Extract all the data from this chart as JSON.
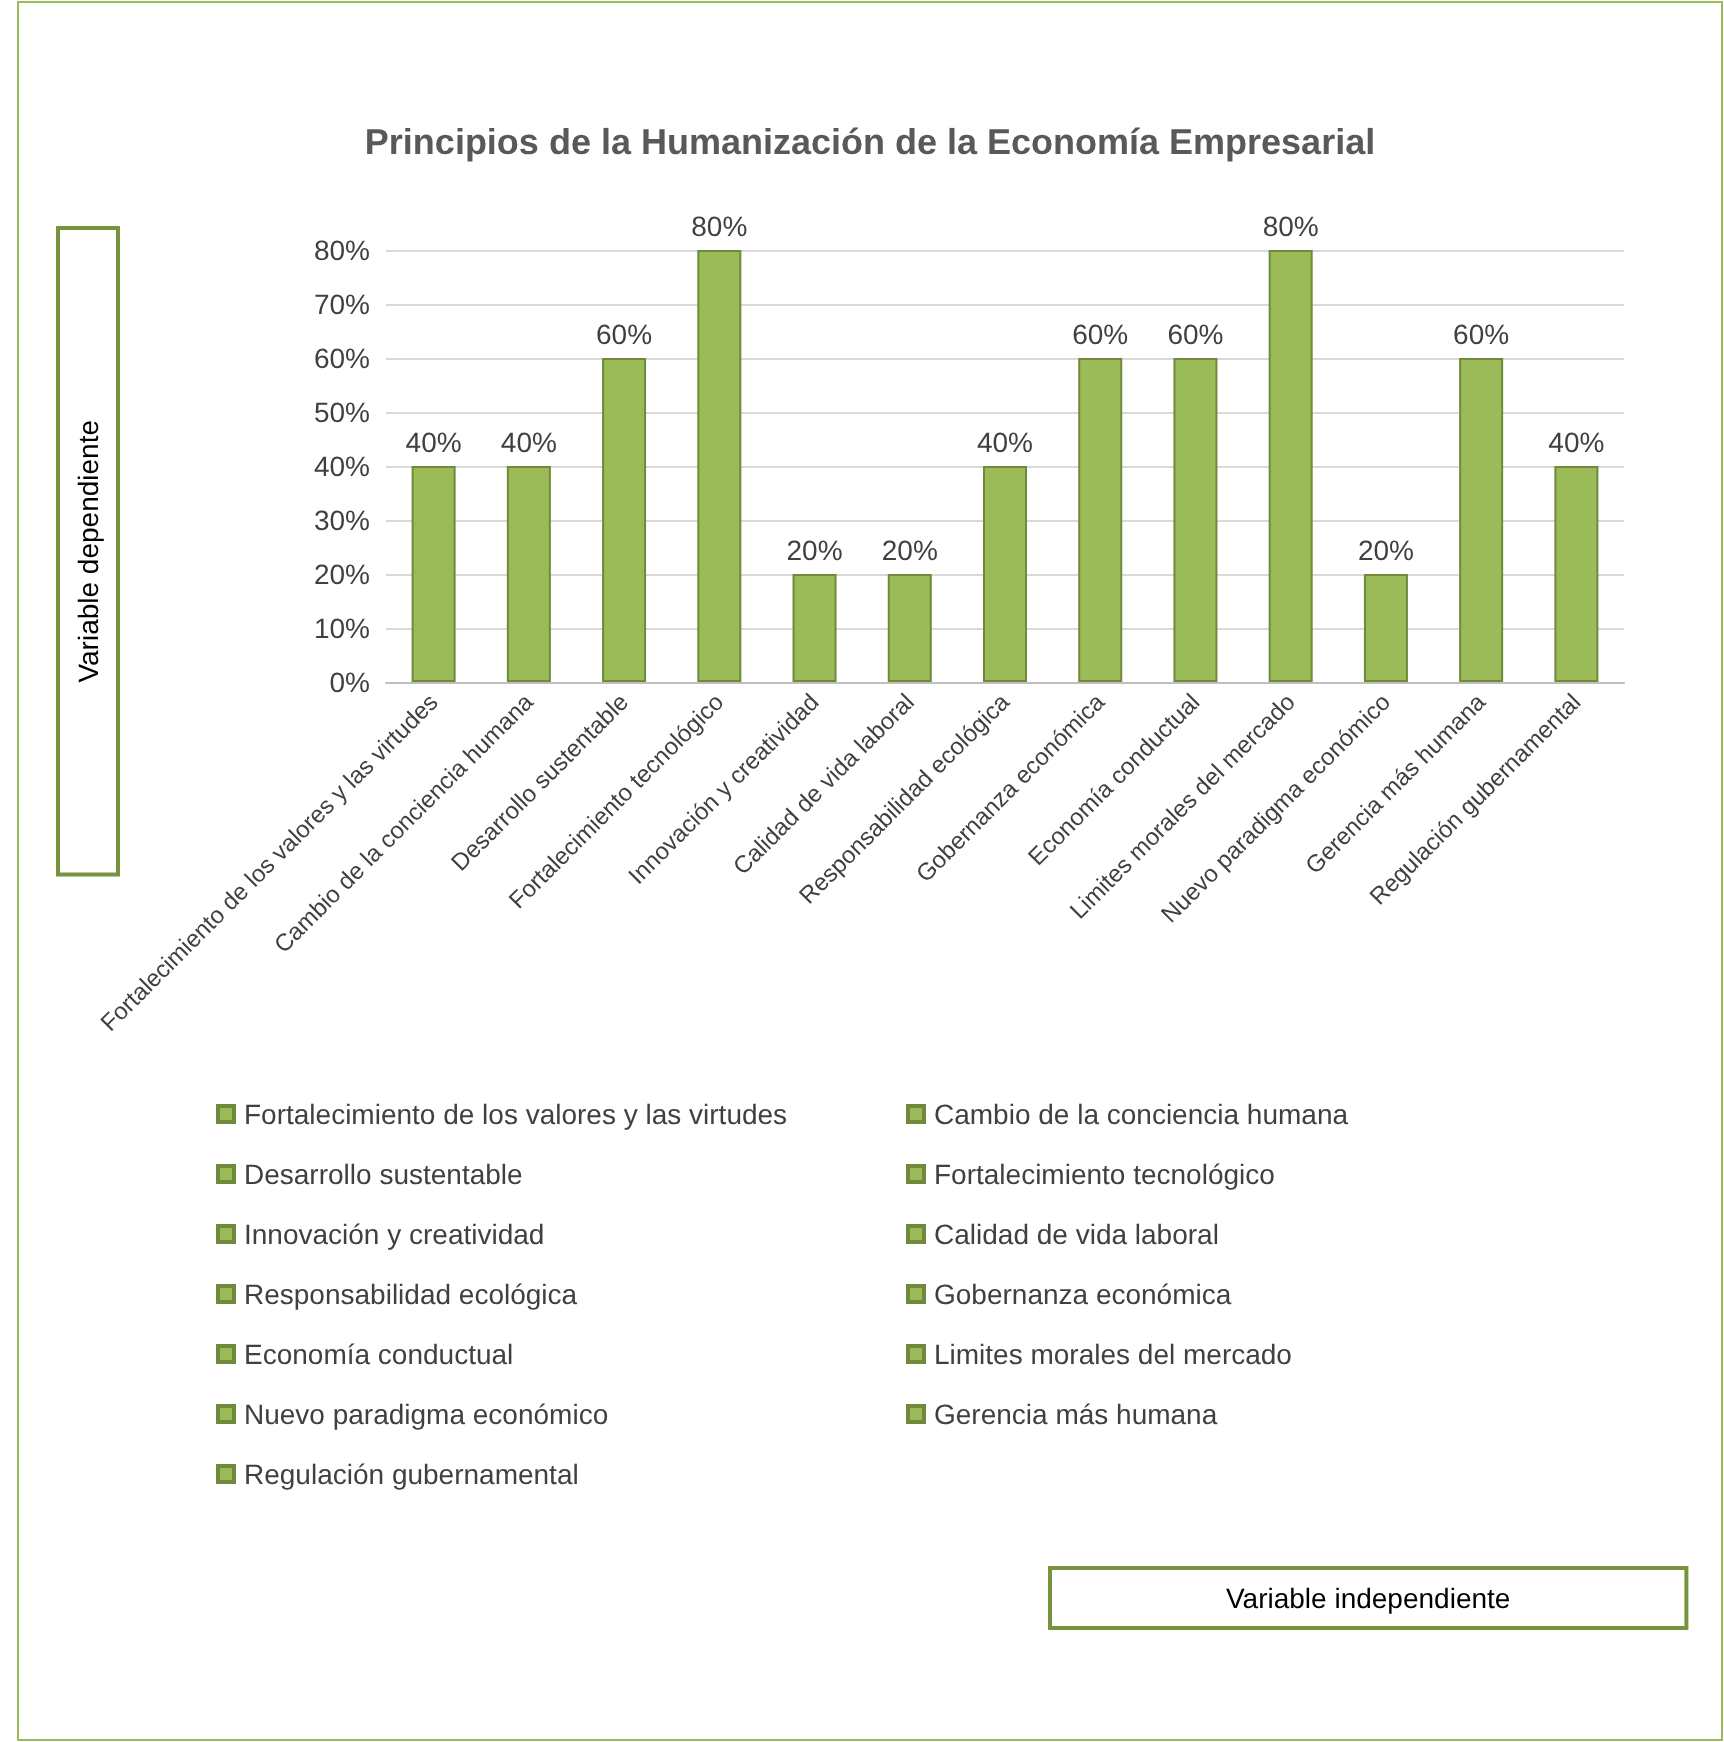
{
  "chart_data": {
    "type": "bar",
    "title": "Principios de la Humanización de la Economía Empresarial",
    "ylabel": "Variable dependiente",
    "annotations": [
      "Variable independiente"
    ],
    "categories": [
      "Fortalecimiento de los valores y las virtudes",
      "Cambio de la conciencia humana",
      "Desarrollo sustentable",
      "Fortalecimiento tecnológico",
      "Innovación y creatividad",
      "Calidad de vida laboral",
      "Responsabilidad ecológica",
      "Gobernanza económica",
      "Economía conductual",
      "Limites morales del mercado",
      "Nuevo paradigma económico",
      "Gerencia más humana",
      "Regulación gubernamental"
    ],
    "series": [
      {
        "name": "Fortalecimiento de los valores y las virtudes",
        "color": "#9bbb59",
        "values": [
          40,
          null,
          null,
          null,
          null,
          null,
          null,
          null,
          null,
          null,
          null,
          null,
          null
        ],
        "value_labels": [
          "40%",
          null,
          null,
          null,
          null,
          null,
          null,
          null,
          null,
          null,
          null,
          null,
          null
        ]
      },
      {
        "name": "Cambio de la conciencia humana",
        "color": "#9bbb59",
        "values": [
          null,
          40,
          null,
          null,
          null,
          null,
          null,
          null,
          null,
          null,
          null,
          null,
          null
        ],
        "value_labels": [
          null,
          "40%",
          null,
          null,
          null,
          null,
          null,
          null,
          null,
          null,
          null,
          null,
          null
        ]
      },
      {
        "name": "Desarrollo sustentable",
        "color": "#9bbb59",
        "values": [
          null,
          null,
          60,
          null,
          null,
          null,
          null,
          null,
          null,
          null,
          null,
          null,
          null
        ],
        "value_labels": [
          null,
          null,
          "60%",
          null,
          null,
          null,
          null,
          null,
          null,
          null,
          null,
          null,
          null
        ]
      },
      {
        "name": "Fortalecimiento tecnológico",
        "color": "#9bbb59",
        "values": [
          null,
          null,
          null,
          80,
          null,
          null,
          null,
          null,
          null,
          null,
          null,
          null,
          null
        ],
        "value_labels": [
          null,
          null,
          null,
          "80%",
          null,
          null,
          null,
          null,
          null,
          null,
          null,
          null,
          null
        ]
      },
      {
        "name": "Innovación y creatividad",
        "color": "#9bbb59",
        "values": [
          null,
          null,
          null,
          null,
          20,
          null,
          null,
          null,
          null,
          null,
          null,
          null,
          null
        ],
        "value_labels": [
          null,
          null,
          null,
          null,
          "20%",
          null,
          null,
          null,
          null,
          null,
          null,
          null,
          null
        ]
      },
      {
        "name": "Calidad de vida laboral",
        "color": "#9bbb59",
        "values": [
          null,
          null,
          null,
          null,
          null,
          20,
          null,
          null,
          null,
          null,
          null,
          null,
          null
        ],
        "value_labels": [
          null,
          null,
          null,
          null,
          null,
          "20%",
          null,
          null,
          null,
          null,
          null,
          null,
          null
        ]
      },
      {
        "name": "Responsabilidad ecológica",
        "color": "#9bbb59",
        "values": [
          null,
          null,
          null,
          null,
          null,
          null,
          40,
          null,
          null,
          null,
          null,
          null,
          null
        ],
        "value_labels": [
          null,
          null,
          null,
          null,
          null,
          null,
          "40%",
          null,
          null,
          null,
          null,
          null,
          null
        ]
      },
      {
        "name": "Gobernanza económica",
        "color": "#9bbb59",
        "values": [
          null,
          null,
          null,
          null,
          null,
          null,
          null,
          60,
          null,
          null,
          null,
          null,
          null
        ],
        "value_labels": [
          null,
          null,
          null,
          null,
          null,
          null,
          null,
          "60%",
          null,
          null,
          null,
          null,
          null
        ]
      },
      {
        "name": "Economía conductual",
        "color": "#9bbb59",
        "values": [
          null,
          null,
          null,
          null,
          null,
          null,
          null,
          null,
          60,
          null,
          null,
          null,
          null
        ],
        "value_labels": [
          null,
          null,
          null,
          null,
          null,
          null,
          null,
          null,
          "60%",
          null,
          null,
          null,
          null
        ]
      },
      {
        "name": "Limites morales del mercado",
        "color": "#9bbb59",
        "values": [
          null,
          null,
          null,
          null,
          null,
          null,
          null,
          null,
          null,
          80,
          null,
          null,
          null
        ],
        "value_labels": [
          null,
          null,
          null,
          null,
          null,
          null,
          null,
          null,
          null,
          "80%",
          null,
          null,
          null
        ]
      },
      {
        "name": "Nuevo paradigma económico",
        "color": "#9bbb59",
        "values": [
          null,
          null,
          null,
          null,
          null,
          null,
          null,
          null,
          null,
          null,
          20,
          null,
          null
        ],
        "value_labels": [
          null,
          null,
          null,
          null,
          null,
          null,
          null,
          null,
          null,
          null,
          "20%",
          null,
          null
        ]
      },
      {
        "name": "Gerencia más humana",
        "color": "#9bbb59",
        "values": [
          null,
          null,
          null,
          null,
          null,
          null,
          null,
          null,
          null,
          null,
          null,
          60,
          null
        ],
        "value_labels": [
          null,
          null,
          null,
          null,
          null,
          null,
          null,
          null,
          null,
          null,
          null,
          "60%",
          null
        ]
      },
      {
        "name": "Regulación gubernamental",
        "color": "#9bbb59",
        "values": [
          null,
          null,
          null,
          null,
          null,
          null,
          null,
          null,
          null,
          null,
          null,
          null,
          40
        ],
        "value_labels": [
          null,
          null,
          null,
          null,
          null,
          null,
          null,
          null,
          null,
          null,
          null,
          null,
          "40%"
        ]
      }
    ],
    "ylim": [
      0,
      80
    ],
    "yticks": [
      {
        "value": 0,
        "label": "0%"
      },
      {
        "value": 10,
        "label": "10%"
      },
      {
        "value": 20,
        "label": "20%"
      },
      {
        "value": 30,
        "label": "30%"
      },
      {
        "value": 40,
        "label": "40%"
      },
      {
        "value": 50,
        "label": "50%"
      },
      {
        "value": 60,
        "label": "60%"
      },
      {
        "value": 70,
        "label": "70%"
      },
      {
        "value": 80,
        "label": "80%"
      }
    ],
    "grid": "y",
    "legend": "bottom"
  }
}
